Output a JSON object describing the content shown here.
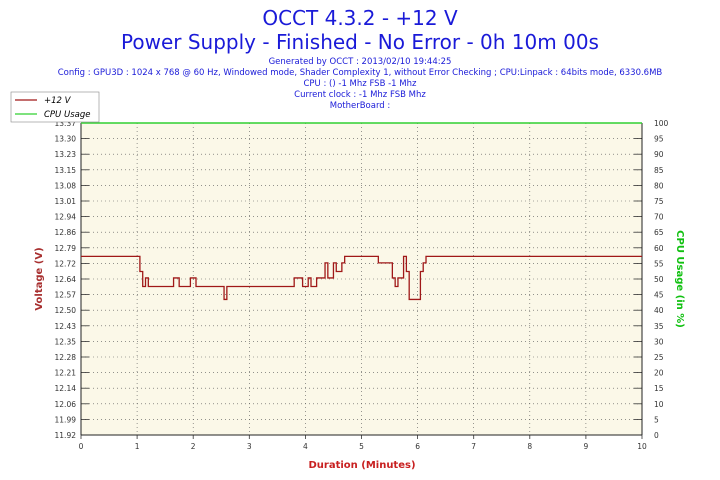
{
  "header": {
    "title": "OCCT 4.3.2 - +12 V",
    "subtitle": "Power Supply - Finished - No Error - 0h 10m 00s",
    "info_lines": [
      "Generated by OCCT : 2013/02/10 19:44:25",
      "Config : GPU3D : 1024 x 768 @ 60 Hz, Windowed mode, Shader Complexity 1, without Error Checking ; CPU:Linpack : 64bits mode, 6330.6MB",
      "CPU :  () -1 Mhz FSB -1 Mhz",
      "Current clock : -1 Mhz FSB  Mhz",
      "MotherBoard :"
    ]
  },
  "colors": {
    "voltage": "#a01818",
    "cpu": "#30d030",
    "plot_bg": "#fbf8e8",
    "title": "#1a1ad8"
  },
  "chart_data": {
    "type": "line",
    "xlabel": "Duration (Minutes)",
    "ylabel": "Voltage (V)",
    "ylabel_right": "CPU Usage (in %)",
    "xlim": [
      0,
      10
    ],
    "ylim": [
      11.92,
      13.37
    ],
    "ylim_right": [
      0,
      100
    ],
    "x_ticks": [
      0,
      1,
      2,
      3,
      4,
      5,
      6,
      7,
      8,
      9,
      10
    ],
    "y_ticks": [
      "11.92",
      "11.99",
      "12.06",
      "12.14",
      "12.21",
      "12.28",
      "12.35",
      "12.43",
      "12.50",
      "12.57",
      "12.64",
      "12.72",
      "12.79",
      "12.86",
      "12.94",
      "13.01",
      "13.08",
      "13.15",
      "13.23",
      "13.30",
      "13.37"
    ],
    "y2_ticks": [
      "0",
      "5",
      "10",
      "15",
      "20",
      "25",
      "30",
      "35",
      "40",
      "45",
      "50",
      "55",
      "60",
      "65",
      "70",
      "75",
      "80",
      "85",
      "90",
      "95",
      "100"
    ],
    "grid": true,
    "legend_position": "top-left",
    "series": [
      {
        "name": "+12 V",
        "axis": "left",
        "x": [
          0,
          1.0,
          1.05,
          1.1,
          1.15,
          1.2,
          1.3,
          1.65,
          1.7,
          1.75,
          1.95,
          2.0,
          2.05,
          2.5,
          2.55,
          2.6,
          3.75,
          3.8,
          3.9,
          3.95,
          4.05,
          4.1,
          4.2,
          4.35,
          4.4,
          4.5,
          4.55,
          4.6,
          4.65,
          4.7,
          5.25,
          5.3,
          5.55,
          5.6,
          5.65,
          5.75,
          5.8,
          5.85,
          5.9,
          6.0,
          6.05,
          6.1,
          6.15,
          10
        ],
        "y": [
          12.75,
          12.75,
          12.68,
          12.61,
          12.65,
          12.61,
          12.61,
          12.65,
          12.65,
          12.61,
          12.65,
          12.65,
          12.61,
          12.61,
          12.55,
          12.61,
          12.61,
          12.65,
          12.65,
          12.61,
          12.65,
          12.61,
          12.65,
          12.72,
          12.65,
          12.72,
          12.68,
          12.68,
          12.72,
          12.75,
          12.75,
          12.72,
          12.65,
          12.61,
          12.65,
          12.75,
          12.68,
          12.55,
          12.55,
          12.55,
          12.68,
          12.72,
          12.75,
          12.75
        ]
      },
      {
        "name": "CPU Usage",
        "axis": "right",
        "x": [
          0,
          10
        ],
        "y": [
          100,
          100
        ]
      }
    ]
  }
}
